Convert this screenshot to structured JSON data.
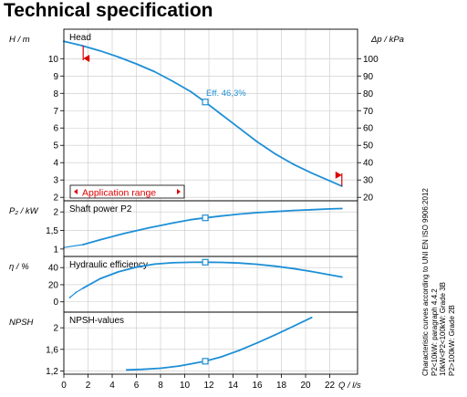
{
  "title": "Technical specification",
  "note": [
    "Characteristic curves according to UNI EN ISO 9906:2012",
    "P2<10kW: paragraph 4.4.2",
    "10kW<P2<100kW: Grade 3B",
    "P2>100kW: Grade 2B"
  ],
  "colors": {
    "curve": "#1e8fd6",
    "application_range": "#dd0000",
    "frame": "#000000",
    "grid": "#c8c8c8"
  },
  "chart_data": [
    {
      "type": "line",
      "name": "Head",
      "xlabel": "Q / l/s",
      "ylabel": "H / m",
      "y2label": "Δp / kPa",
      "x_ticks": [
        0,
        2,
        4,
        6,
        8,
        10,
        12,
        14,
        16,
        18,
        20,
        22
      ],
      "y_ticks": [
        2,
        3,
        4,
        5,
        6,
        7,
        8,
        9,
        10
      ],
      "y2_ticks": [
        20,
        30,
        40,
        50,
        60,
        70,
        80,
        90,
        100
      ],
      "xlim": [
        0,
        24.3
      ],
      "ylim": [
        1.8,
        11.7
      ],
      "y2lim": [
        18,
        117
      ],
      "grid": true,
      "series": [
        {
          "x": [
            0,
            1.5,
            3,
            4.5,
            6,
            7.5,
            9,
            10.5,
            11.7,
            13,
            14.5,
            16,
            17.5,
            19,
            20.5,
            22,
            23.0
          ],
          "y": [
            11.0,
            10.75,
            10.45,
            10.1,
            9.7,
            9.25,
            8.7,
            8.1,
            7.5,
            6.8,
            6.0,
            5.2,
            4.5,
            3.9,
            3.4,
            2.95,
            2.65
          ]
        }
      ],
      "operating_point": {
        "x": 11.7,
        "y": 7.5,
        "label": "Eff. 46,3%"
      },
      "application_range": {
        "label": "Application range",
        "x_min": 1.6,
        "x_max": 23.0
      }
    },
    {
      "type": "line",
      "name": "Shaft power P2",
      "xlabel": "Q / l/s",
      "ylabel": "P₂ / kW",
      "y_ticks": [
        1,
        1.5,
        2
      ],
      "ylim": [
        0.8,
        2.3
      ],
      "grid": true,
      "series": [
        {
          "x": [
            1.6,
            3,
            5,
            7,
            9,
            10.5,
            11.7,
            13,
            14.5,
            16,
            17.5,
            19,
            20.5,
            22,
            23.0
          ],
          "y": [
            1.12,
            1.25,
            1.42,
            1.57,
            1.7,
            1.79,
            1.84,
            1.89,
            1.94,
            1.98,
            2.01,
            2.04,
            2.06,
            2.08,
            2.09
          ]
        },
        {
          "x": [
            0,
            1.6
          ],
          "y": [
            1.04,
            1.12
          ],
          "style": "extrapolated"
        }
      ],
      "operating_point": {
        "x": 11.7,
        "y": 1.84
      }
    },
    {
      "type": "line",
      "name": "Hydraulic efficiency",
      "xlabel": "Q / l/s",
      "ylabel": "η / %",
      "y_ticks": [
        0,
        20,
        40
      ],
      "ylim": [
        -12,
        53
      ],
      "grid": true,
      "series": [
        {
          "x": [
            1.6,
            3,
            4.5,
            6,
            7.5,
            9,
            10.5,
            11.7,
            13,
            14.5,
            16,
            17.5,
            19,
            20.5,
            22,
            23.0
          ],
          "y": [
            16,
            27,
            35,
            40.5,
            44,
            45.7,
            46.2,
            46.3,
            46.1,
            45.3,
            43.8,
            41.6,
            38.8,
            35.4,
            31.6,
            29
          ]
        },
        {
          "x": [
            0.5,
            1.0,
            1.6
          ],
          "y": [
            5,
            11,
            16
          ],
          "style": "extrapolated"
        }
      ],
      "operating_point": {
        "x": 11.7,
        "y": 46.3
      }
    },
    {
      "type": "line",
      "name": "NPSH-values",
      "xlabel": "Q / l/s",
      "ylabel": "NPSH",
      "y_ticks": [
        1.2,
        1.6,
        2
      ],
      "ylim": [
        1.14,
        2.29
      ],
      "grid": true,
      "series": [
        {
          "x": [
            5.2,
            6.5,
            8,
            9.5,
            10.5,
            11.7,
            13,
            14.5,
            16,
            17.5,
            19,
            20.5
          ],
          "y": [
            1.22,
            1.23,
            1.25,
            1.29,
            1.33,
            1.38,
            1.46,
            1.58,
            1.72,
            1.87,
            2.03,
            2.19
          ]
        }
      ],
      "operating_point": {
        "x": 11.7,
        "y": 1.38
      }
    }
  ]
}
